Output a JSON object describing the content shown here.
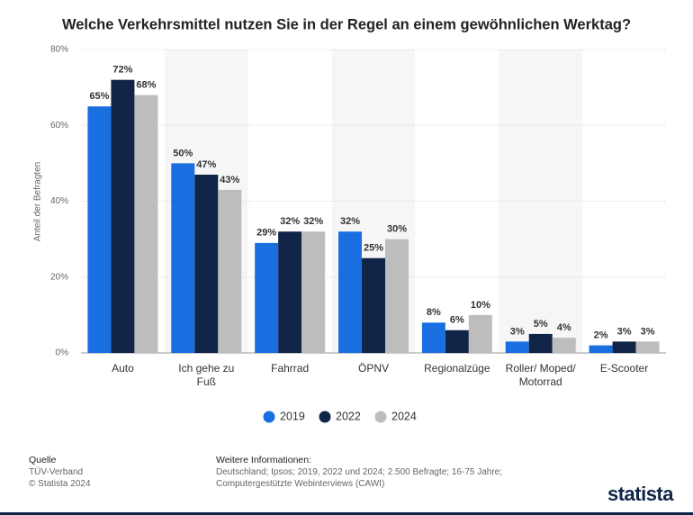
{
  "chart_data": {
    "type": "bar",
    "title": "Welche Verkehrsmittel nutzen Sie in der Regel an einem gewöhnlichen Werktag?",
    "y_label": "Anteil der Befragten",
    "categories": [
      "Auto",
      "Ich gehe zu Fuß",
      "Fahrrad",
      "ÖPNV",
      "Regionalzüge",
      "Roller/ Moped/ Motorrad",
      "E-Scooter"
    ],
    "series": [
      {
        "name": "2019",
        "color": "#1a6fe0",
        "values": [
          65,
          50,
          29,
          32,
          8,
          3,
          2
        ],
        "value_labels": [
          "65%",
          "50%",
          "29%",
          "32%",
          "8%",
          "3%",
          "2%"
        ]
      },
      {
        "name": "2022",
        "color": "#0f2447",
        "values": [
          72,
          47,
          32,
          25,
          6,
          5,
          3
        ],
        "value_labels": [
          "72%",
          "47%",
          "32%",
          "25%",
          "6%",
          "5%",
          "3%"
        ]
      },
      {
        "name": "2024",
        "color": "#bdbdbd",
        "values": [
          68,
          43,
          32,
          30,
          10,
          4,
          3
        ],
        "value_labels": [
          "68%",
          "43%",
          "32%",
          "30%",
          "10%",
          "4%",
          "3%"
        ]
      }
    ],
    "ylim": [
      0,
      80
    ],
    "yticks": [
      {
        "value": 0,
        "label": "0%"
      },
      {
        "value": 20,
        "label": "20%"
      },
      {
        "value": 40,
        "label": "40%"
      },
      {
        "value": 60,
        "label": "60%"
      },
      {
        "value": 80,
        "label": "80%"
      }
    ],
    "grid": true
  },
  "footer": {
    "source_title": "Quelle",
    "source": "TÜV-Verband",
    "copyright": "© Statista 2024",
    "info_title": "Weitere Informationen:",
    "info_lines": [
      "Deutschland; Ipsos; 2019, 2022 und 2024; 2.500 Befragte; 16-75 Jahre;",
      "Computergestützte Webinterviews (CAWI)"
    ],
    "logo": "statista"
  }
}
